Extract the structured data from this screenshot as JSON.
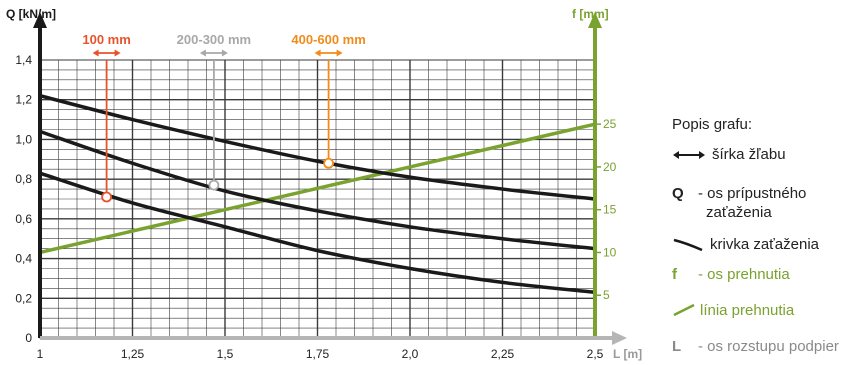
{
  "colors": {
    "black": "#1a1a1a",
    "green": "#7aa22e",
    "grid": "#3a3a3a",
    "orange_red": "#e8532b",
    "gray": "#a8a8a8",
    "orange": "#f08c1c",
    "axis_gray": "#b5b5b5"
  },
  "chart_data": {
    "type": "line",
    "left_axis_label": "Q [kN/m]",
    "right_axis_label": "f [mm]",
    "x_axis_label": "L [m]",
    "xlim": [
      1,
      2.5
    ],
    "ylim_left": [
      0,
      1.4
    ],
    "ylim_right": [
      0,
      32.5
    ],
    "x_ticks": [
      1,
      1.25,
      1.5,
      1.75,
      2.0,
      2.25,
      2.5
    ],
    "x_tick_labels": [
      "1",
      "1,25",
      "1,5",
      "1,75",
      "2,0",
      "2,25",
      "2,5"
    ],
    "y_ticks_left": [
      0,
      0.2,
      0.4,
      0.6,
      0.8,
      1.0,
      1.2,
      1.4
    ],
    "y_tick_labels_left": [
      "0",
      "0,2",
      "0,4",
      "0,6",
      "0,8",
      "1,0",
      "1,2",
      "1,4"
    ],
    "y_ticks_right": [
      5,
      10,
      15,
      20,
      25
    ],
    "y_tick_labels_right": [
      "5",
      "10",
      "15",
      "20",
      "25"
    ],
    "load_curves": [
      {
        "x": [
          1,
          1.25,
          1.5,
          1.75,
          2.0,
          2.25,
          2.5
        ],
        "y": [
          0.83,
          0.68,
          0.56,
          0.44,
          0.35,
          0.28,
          0.23
        ]
      },
      {
        "x": [
          1,
          1.25,
          1.5,
          1.75,
          2.0,
          2.25,
          2.5
        ],
        "y": [
          1.04,
          0.88,
          0.74,
          0.64,
          0.56,
          0.5,
          0.45
        ]
      },
      {
        "x": [
          1,
          1.25,
          1.5,
          1.75,
          2.0,
          2.25,
          2.5
        ],
        "y": [
          1.22,
          1.1,
          0.99,
          0.89,
          0.81,
          0.75,
          0.7
        ]
      }
    ],
    "deflection_line": {
      "x": [
        1,
        2.5
      ],
      "f": [
        10,
        25
      ]
    },
    "width_markers": [
      {
        "label": "100 mm",
        "x": 1.18,
        "q": 0.71,
        "color_key": "orange_red"
      },
      {
        "label": "200-300 mm",
        "x": 1.47,
        "q": 0.77,
        "color_key": "gray"
      },
      {
        "label": "400-600 mm",
        "x": 1.78,
        "q": 0.88,
        "color_key": "orange"
      }
    ]
  },
  "legend": {
    "title": "Popis grafu:",
    "width_text": "šírka žľabu",
    "q_key": "Q",
    "q_text_line1": "- os prípustného",
    "q_text_line2": "zaťaženia",
    "curve_text": "krivka zaťaženia",
    "f_key": "f",
    "f_text": "- os prehnutia",
    "line_text": "línia prehnutia",
    "l_key": "L",
    "l_text": "- os rozstupu podpier"
  }
}
